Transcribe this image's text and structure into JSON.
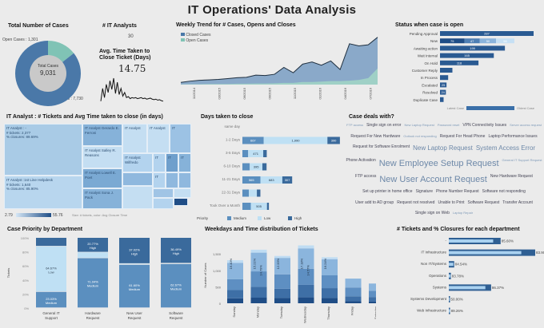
{
  "title": "IT Operations' Data Analysis",
  "colors": {
    "closed": "#4a78a8",
    "open": "#80c3b5",
    "dark": "#2f5f93",
    "medium": "#5b8fbf",
    "low": "#bfe0f4",
    "high": "#3a6a9c"
  },
  "total_cases": {
    "title": "Total Number of Cases",
    "center_label": "Total Cases",
    "center_value": "9,031",
    "open_label": "Open Cases : 1,301",
    "closed_label": "Closed Cases : 7,730"
  },
  "analysts": {
    "title": "# IT Analysts",
    "value": "30"
  },
  "avg_time": {
    "title_line1": "Avg. Time Taken to",
    "title_line2": "Close Ticket (Days)",
    "value": "14.75"
  },
  "weekly": {
    "title": "Weekly Trend for # Cases, Opens and Closes",
    "legend": [
      "Closed Cases",
      "Open Cases"
    ]
  },
  "status": {
    "title": "Status when case is open",
    "legend_left": "Latest Case",
    "legend_right": "Oldest Case"
  },
  "treemap": {
    "title": "IT Analyst : # Tickets and Avg Time taken to close (in days)",
    "cells": [
      {
        "label": "IT Analyst : -",
        "tickets": "# tickets: 2,377",
        "closure": "% closures: 89.69%"
      },
      {
        "label": "IT Analyst :1st Line Helpdesk",
        "tickets": "# tickets: 1,640",
        "closure": "% closures: 85.90%"
      },
      {
        "label": "IT Analyst Gerardo E. Ferroni"
      },
      {
        "label": "IT Analyst Salley R. Reasons"
      },
      {
        "label": "IT Analyst Lowell E. Poet"
      },
      {
        "label": "IT Analyst Sona J. Pack"
      },
      {
        "label": "IT Analyst"
      },
      {
        "label": "IT Analyst"
      },
      {
        "label": "IT"
      },
      {
        "label": "IT Analyst Wilfredo"
      },
      {
        "label": "IT"
      },
      {
        "label": "IT"
      },
      {
        "label": "IT"
      },
      {
        "label": "IT"
      }
    ],
    "legend_min": "2.79",
    "legend_max": "55.76",
    "legend_note": "Size: # tickets, color: Avg Closure Time"
  },
  "word_cloud": {
    "title": "Case deals with?",
    "words": [
      {
        "t": "FTP access",
        "s": 1
      },
      {
        "t": "Single sign on error",
        "s": 2
      },
      {
        "t": "New Laptop Request",
        "s": 1
      },
      {
        "t": "Password reset",
        "s": 1
      },
      {
        "t": "VPN Connectivity Issues",
        "s": 2
      },
      {
        "t": "Server access request",
        "s": 1
      },
      {
        "t": "Request For New Hardware",
        "s": 2
      },
      {
        "t": "Outlook not responding",
        "s": 1
      },
      {
        "t": "Request For Head Phone",
        "s": 2
      },
      {
        "t": "Laptop Performance Issues",
        "s": 2
      },
      {
        "t": "Request for Software Enrolment",
        "s": 2
      },
      {
        "t": "New Laptop Request",
        "s": 3
      },
      {
        "t": "System Access Error",
        "s": 3
      },
      {
        "t": "Phone Activation",
        "s": 2
      },
      {
        "t": "New Employee Setup Request",
        "s": 4
      },
      {
        "t": "General IT Support Request",
        "s": 1
      },
      {
        "t": "FTP access",
        "s": 2
      },
      {
        "t": "New User Account Request",
        "s": 4
      },
      {
        "t": "New Hardware Request",
        "s": 2
      },
      {
        "t": "Set up printer in home office",
        "s": 2
      },
      {
        "t": "Signature",
        "s": 2
      },
      {
        "t": "Phone Number Request",
        "s": 2
      },
      {
        "t": "Software not responding",
        "s": 2
      },
      {
        "t": "User add to AD group",
        "s": 2
      },
      {
        "t": "Request not resolved",
        "s": 2
      },
      {
        "t": "Unable to Print",
        "s": 2
      },
      {
        "t": "Software Request",
        "s": 2
      },
      {
        "t": "Transfer Account",
        "s": 2
      },
      {
        "t": "Single sign on Web",
        "s": 2
      },
      {
        "t": "Laptop Repair",
        "s": 1
      }
    ]
  },
  "chart_data": [
    {
      "type": "pie",
      "title": "Total Number of Cases",
      "labels": [
        "Open Cases",
        "Closed Cases"
      ],
      "values": [
        1301,
        7730
      ]
    },
    {
      "type": "line",
      "title": "Avg. Time Taken to Close Ticket (Days)",
      "values": [
        5,
        30,
        12,
        38,
        22,
        45,
        28,
        50,
        20,
        42,
        18,
        30,
        15,
        22,
        12,
        14,
        10,
        12,
        11,
        12,
        10,
        11,
        12,
        10,
        11,
        9,
        10,
        11,
        9,
        8,
        9,
        7,
        8,
        6,
        5
      ]
    },
    {
      "type": "area",
      "title": "Weekly Trend for # Cases, Opens and Closes",
      "x_ticks": [
        "11/2014",
        "03/2015",
        "06/2015",
        "09/2015",
        "11/2015",
        "01/2016",
        "04/2016",
        "07/2016"
      ],
      "x": [
        "2014-10",
        "2014-11",
        "2014-12",
        "2015-01",
        "2015-02",
        "2015-03",
        "2015-04",
        "2015-05",
        "2015-06",
        "2015-07",
        "2015-08",
        "2015-09",
        "2015-10",
        "2015-11",
        "2015-12",
        "2016-01",
        "2016-02",
        "2016-03",
        "2016-04",
        "2016-05",
        "2016-06",
        "2016-07"
      ],
      "series": [
        {
          "name": "Closed Cases",
          "values": [
            10,
            16,
            20,
            22,
            24,
            28,
            32,
            34,
            44,
            42,
            48,
            80,
            55,
            95,
            105,
            90,
            110,
            70,
            190,
            180,
            185,
            220
          ]
        },
        {
          "name": "Open Cases",
          "values": [
            1,
            2,
            2,
            3,
            3,
            3,
            4,
            4,
            5,
            5,
            6,
            8,
            8,
            12,
            12,
            14,
            16,
            16,
            18,
            22,
            30,
            75
          ]
        }
      ]
    },
    {
      "type": "bar",
      "title": "Status when case is open",
      "categories": [
        "Pending Approval",
        "New",
        "Awaiting action",
        "Wait Internal",
        "On Hold",
        "Customer Reply",
        "In Process",
        "Escalated",
        "Resolved",
        "Duplicate Case"
      ],
      "segments": [
        [
          "287"
        ],
        [
          "75",
          "47",
          "50",
          "56"
        ],
        [
          "199"
        ],
        [
          "165"
        ],
        [
          "118"
        ],
        [],
        [],
        [
          "25"
        ],
        [
          "24"
        ],
        []
      ],
      "values": [
        287,
        228,
        199,
        165,
        118,
        38,
        25,
        20,
        18,
        11
      ]
    },
    {
      "type": "bar",
      "title": "Days taken to close",
      "categories": [
        "same day",
        "1-2 Days",
        "3-5 Days",
        "6-10 Days",
        "11-21 Days",
        "22-31 Days",
        "Took Over a Month"
      ],
      "series": [
        {
          "name": "Medium",
          "values": [
            0,
            667,
            180,
            230,
            565,
            202,
            263
          ]
        },
        {
          "name": "Low",
          "values": [
            0,
            1990,
            471,
            395,
            683,
            250,
            505
          ]
        },
        {
          "name": "High",
          "values": [
            0,
            390,
            110,
            130,
            307,
            110,
            60
          ]
        }
      ],
      "legend_title": "Priority"
    },
    {
      "type": "bar",
      "title": "Case Priority by Department",
      "ylabel": "Tickets",
      "yticks": [
        "0%",
        "20%",
        "40%",
        "60%",
        "80%",
        "100%"
      ],
      "categories": [
        "General IT Support",
        "Hardware Request",
        "New User Request",
        "Software Request"
      ],
      "series": [
        {
          "name": "Medium",
          "values": [
            23.03,
            71.04,
            61.6,
            62.67
          ]
        },
        {
          "name": "Low",
          "values": [
            64.67,
            8.19,
            1.38,
            0.84
          ]
        },
        {
          "name": "High",
          "values": [
            12.3,
            20.77,
            37.02,
            36.49
          ]
        }
      ],
      "labels": [
        [
          "23.03%",
          "64.67%",
          ""
        ],
        [
          "71.04%",
          "",
          "20.77%"
        ],
        [
          "61.60%",
          "",
          "37.02%"
        ],
        [
          "62.67%",
          "",
          "36.49%"
        ]
      ]
    },
    {
      "type": "bar",
      "title": "Weekdays and Time distribution of Tickets",
      "ylabel": "Number of Cases",
      "yticks": [
        "0",
        "500",
        "1,000",
        "1,500"
      ],
      "categories": [
        "Sunday",
        "Monday",
        "Tuesday",
        "Wednesday",
        "Thursday",
        "Friday",
        "Saturday"
      ],
      "stacks": [
        [
          150,
          250,
          330,
          500,
          80
        ],
        [
          170,
          330,
          470,
          570,
          90
        ],
        [
          160,
          280,
          440,
          500,
          60
        ],
        [
          180,
          380,
          490,
          620,
          90
        ],
        [
          160,
          300,
          390,
          490,
          60
        ],
        [
          60,
          150,
          270,
          270,
          0
        ],
        [
          50,
          140,
          190,
          220,
          0
        ]
      ],
      "labels": [
        [
          "16.40%"
        ],
        [
          "15.21%",
          "14.79%"
        ],
        [
          "12.33%"
        ],
        [
          "17.18%",
          "14.57%"
        ],
        [
          "16.24%"
        ],
        [],
        []
      ]
    },
    {
      "type": "bar",
      "title": "# Tickets and % Closures for each department",
      "categories": [
        "-",
        "IT Infrastructure",
        "Non IT/Systems",
        "Operations",
        "Systems",
        "Systems Development",
        "Web Infrastructure"
      ],
      "tickets": [
        2400,
        4000,
        250,
        100,
        1960,
        10,
        60
      ],
      "closure_pct": [
        85.6,
        83.9,
        84.54,
        83.78,
        86.37,
        50.0,
        89.26
      ]
    }
  ]
}
